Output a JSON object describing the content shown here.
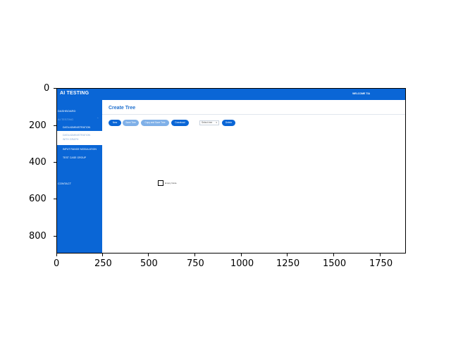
{
  "figure": {
    "x_ticks": [
      "0",
      "250",
      "500",
      "750",
      "1000",
      "1250",
      "1500",
      "1750"
    ],
    "y_ticks": [
      "0",
      "200",
      "400",
      "600",
      "800"
    ]
  },
  "app": {
    "title": "AI TESTING",
    "welcome": "WELCOME TIA",
    "sidebar": {
      "dashboard": "DASHBOARD",
      "ai_testing": "AI TESTING",
      "chevron": "⌃",
      "data_admin": "DATA ADMINISTRATION",
      "data_admin_graph_1": "DATA ADMINISTRATION",
      "data_admin_graph_2": "WITH GRAPH",
      "input_range": "INPUT RANGE MODULATION",
      "test_case": "TEST CASE GROUP",
      "contact": "CONTACT"
    },
    "main": {
      "page_title": "Create Tree",
      "buttons": {
        "new": "New",
        "save": "Save Tree",
        "copy_save": "Copy and Save Tree",
        "download": "Download",
        "delete": "Delete"
      },
      "select_placeholder": "Select tree",
      "select_chevron": "▾",
      "empty_note": "Empty Node"
    },
    "colors": {
      "primary": "#0a66d6",
      "muted_button": "#7fb0e8",
      "title": "#1f6fce"
    }
  }
}
